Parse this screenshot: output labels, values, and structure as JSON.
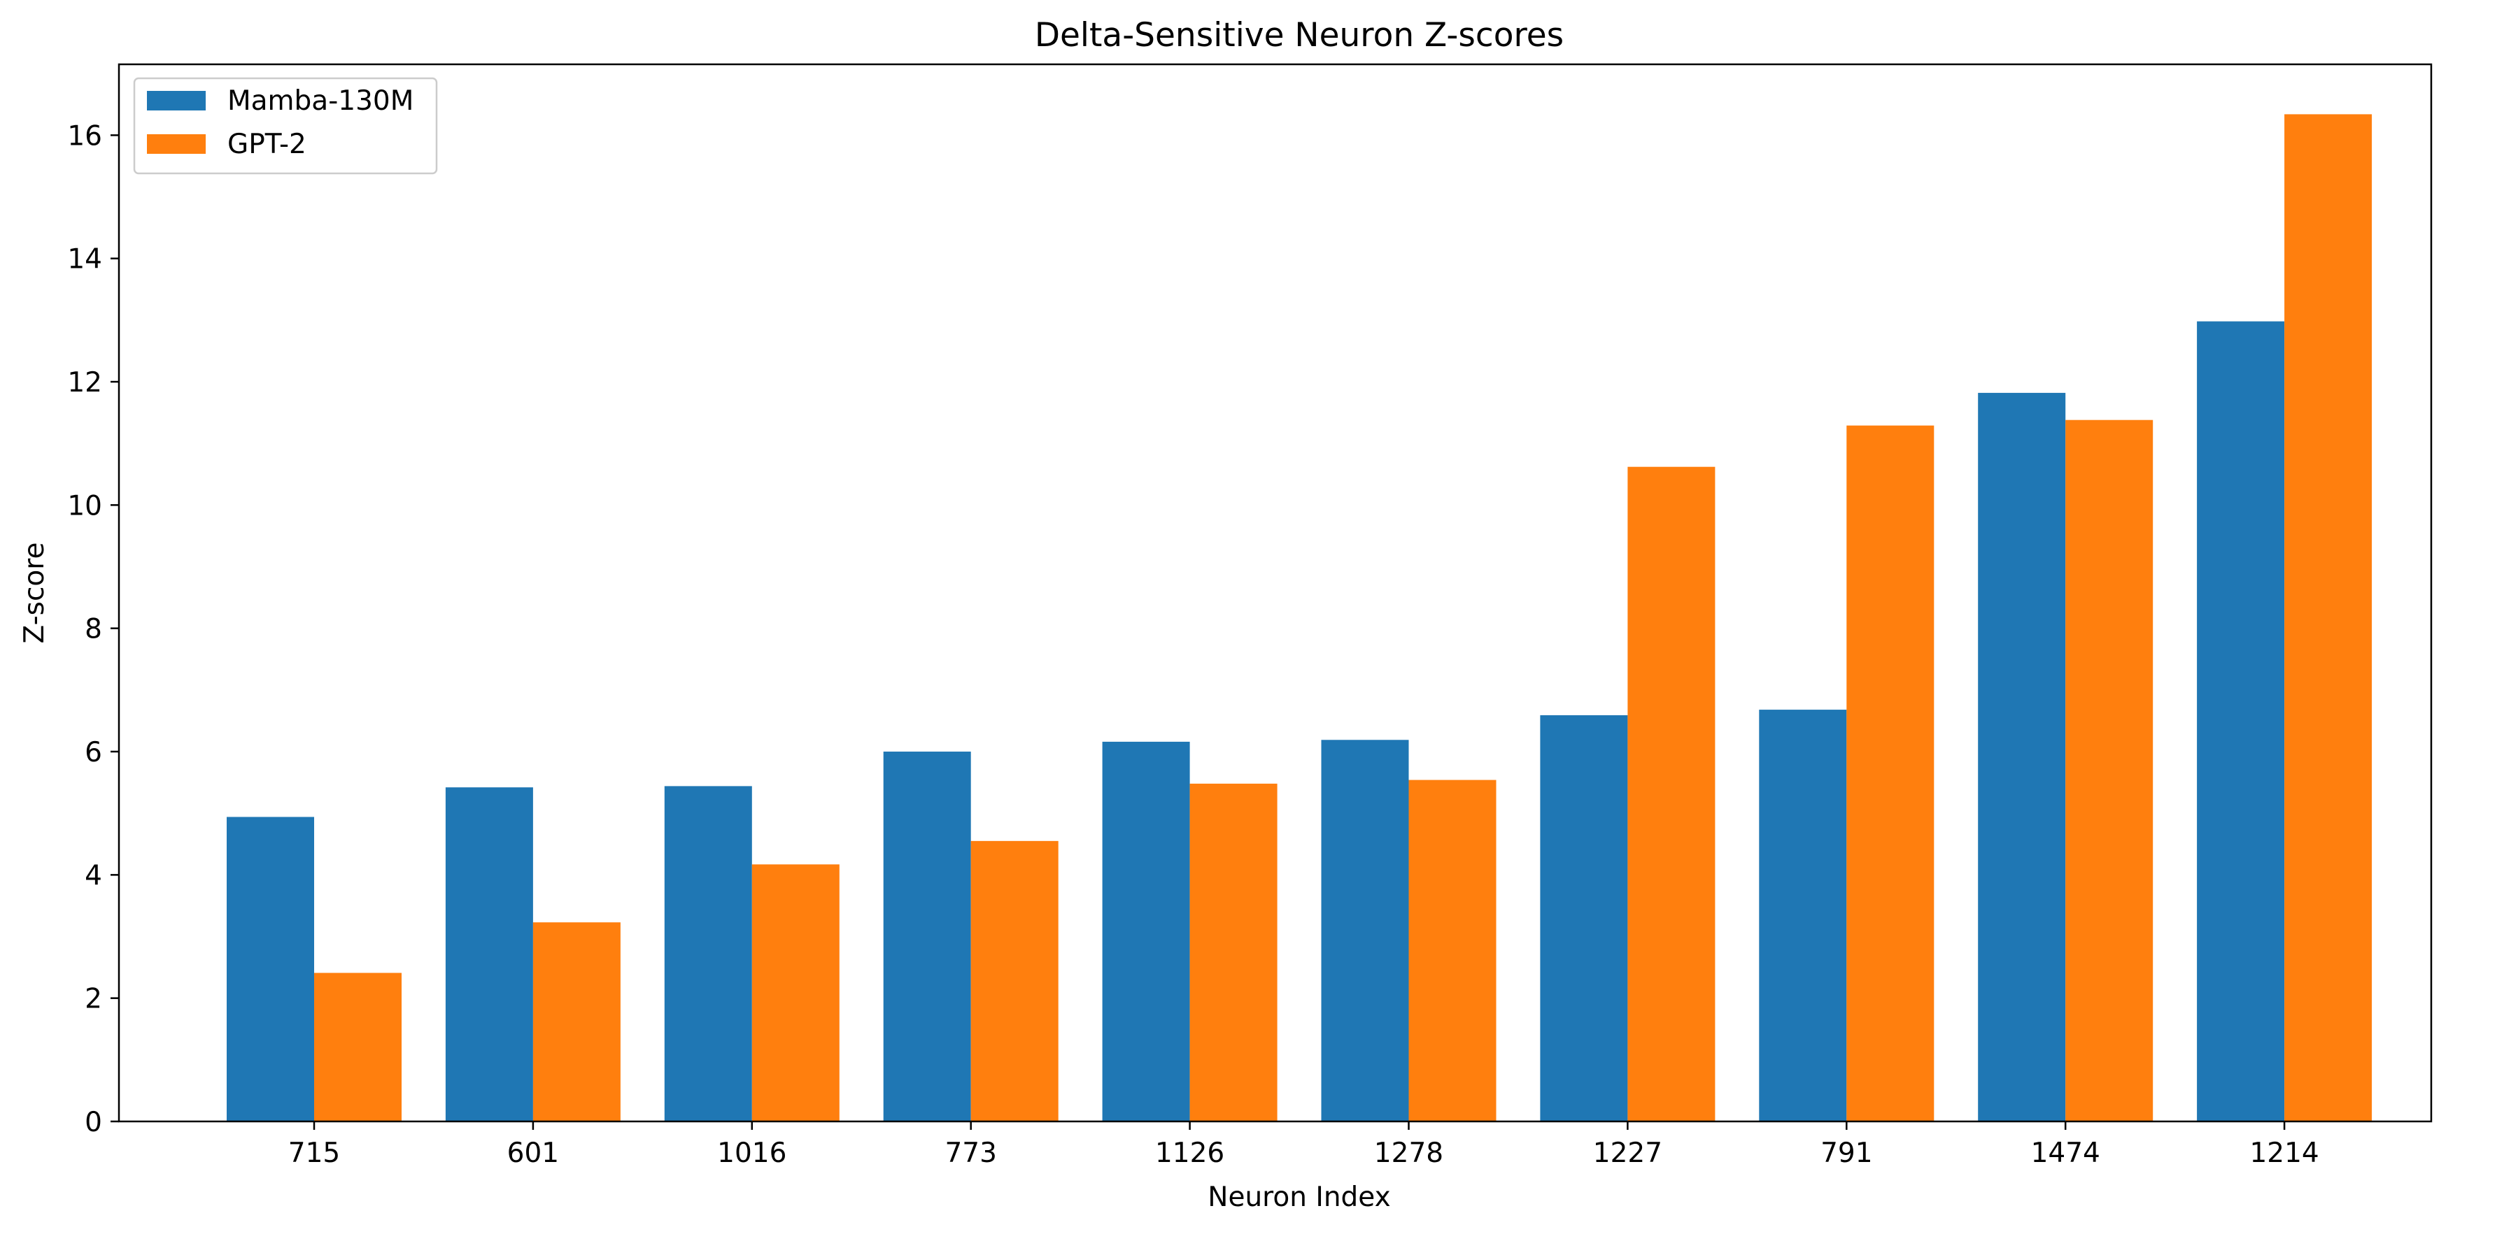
{
  "chart_data": {
    "type": "bar",
    "title": "Delta-Sensitive Neuron Z-scores",
    "xlabel": "Neuron Index",
    "ylabel": "Z-score",
    "categories": [
      "715",
      "601",
      "1016",
      "773",
      "1126",
      "1278",
      "1227",
      "791",
      "1474",
      "1214"
    ],
    "series": [
      {
        "name": "Mamba-130M",
        "color": "#1f77b4",
        "values": [
          4.94,
          5.42,
          5.44,
          6.0,
          6.16,
          6.19,
          6.59,
          6.68,
          11.82,
          12.98
        ]
      },
      {
        "name": "GPT-2",
        "color": "#ff7f0e",
        "values": [
          2.41,
          3.23,
          4.17,
          4.55,
          5.48,
          5.54,
          10.62,
          11.29,
          11.38,
          16.34
        ]
      }
    ],
    "ylim": [
      0,
      17.15
    ],
    "yticks": [
      0,
      2,
      4,
      6,
      8,
      10,
      12,
      14,
      16
    ],
    "ytick_labels": [
      "0",
      "2",
      "4",
      "6",
      "8",
      "10",
      "12",
      "14",
      "16"
    ],
    "legend_position": "upper-left",
    "grid": false
  }
}
